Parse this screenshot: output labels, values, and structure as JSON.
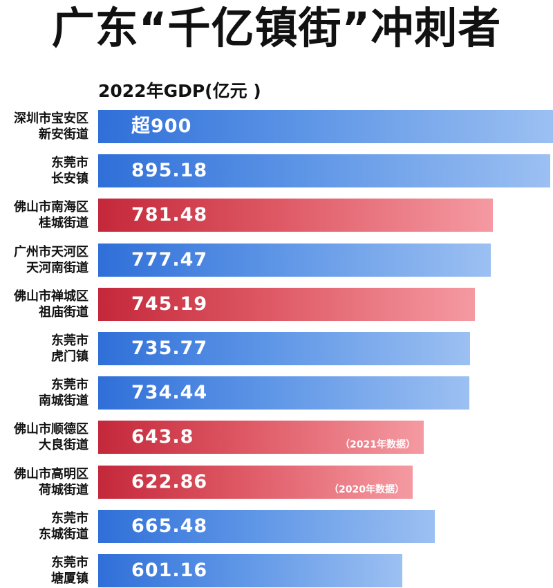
{
  "title": "广东“千亿镇街”冲刺者",
  "colors": {
    "blue_series": "#2f6fd8",
    "red_series": "#c4283a",
    "text": "#111111"
  },
  "chart_data": {
    "type": "bar",
    "orientation": "horizontal",
    "title": "广东“千亿镇街”冲刺者",
    "subtitle": "2022年GDP(亿元 )",
    "xlim": [
      0,
      900
    ],
    "grid": false,
    "legend": "none",
    "categories": [
      [
        "深圳市宝安区",
        "新安街道"
      ],
      [
        "东莞市",
        "长安镇"
      ],
      [
        "佛山市南海区",
        "桂城街道"
      ],
      [
        "广州市天河区",
        "天河南街道"
      ],
      [
        "佛山市禅城区",
        "祖庙街道"
      ],
      [
        "东莞市",
        "虎门镇"
      ],
      [
        "东莞市",
        "南城街道"
      ],
      [
        "佛山市顺德区",
        "大良街道"
      ],
      [
        "佛山市高明区",
        "荷城街道"
      ],
      [
        "东莞市",
        "东城街道"
      ],
      [
        "东莞市",
        "塘厦镇"
      ]
    ],
    "values": [
      900,
      895.18,
      781.48,
      777.47,
      745.19,
      735.77,
      734.44,
      643.8,
      622.86,
      665.48,
      601.16
    ],
    "value_labels": [
      "超900",
      "895.18",
      "781.48",
      "777.47",
      "745.19",
      "735.77",
      "734.44",
      "643.8",
      "622.86",
      "665.48",
      "601.16"
    ],
    "notes": [
      "",
      "",
      "",
      "",
      "",
      "",
      "",
      "（2021年数据）",
      "（2020年数据）",
      "",
      ""
    ],
    "bar_colors": [
      "blue",
      "blue",
      "red",
      "blue",
      "red",
      "blue",
      "blue",
      "red",
      "red",
      "blue",
      "blue"
    ]
  }
}
